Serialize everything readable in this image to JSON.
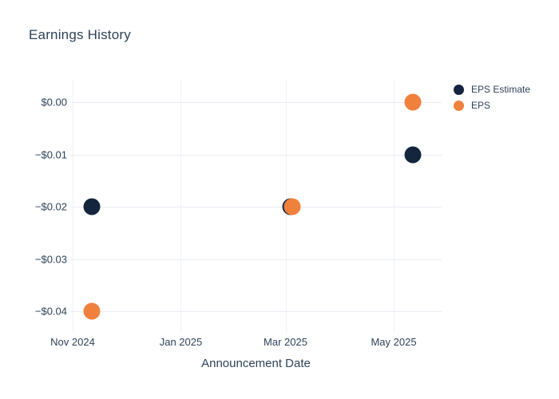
{
  "chart_data": {
    "type": "scatter",
    "title": "Earnings History",
    "xlabel": "Announcement Date",
    "ylabel": "",
    "grid": true,
    "background_color": "#ffffff",
    "gridline_color": "#e9edf5",
    "text_color": "#2e4258",
    "legend_position": "right-outside-top",
    "ylim": [
      -0.0445,
      0.0045
    ],
    "x_ticks": [
      {
        "label": "Nov 2024",
        "date": "2024-11-01"
      },
      {
        "label": "Jan 2025",
        "date": "2025-01-01"
      },
      {
        "label": "Mar 2025",
        "date": "2025-03-01"
      },
      {
        "label": "May 2025",
        "date": "2025-05-01"
      }
    ],
    "y_ticks": [
      {
        "label": "$0.00",
        "value": 0
      },
      {
        "label": "−$0.01",
        "value": -0.01
      },
      {
        "label": "−$0.02",
        "value": -0.02
      },
      {
        "label": "−$0.03",
        "value": -0.03
      },
      {
        "label": "−$0.04",
        "value": -0.04
      }
    ],
    "series": [
      {
        "name": "EPS Estimate",
        "color": "#14253e",
        "marker": "circle",
        "points": [
          {
            "date": "2024-11-12",
            "value": -0.02
          },
          {
            "date": "2025-03-04",
            "value": -0.02
          },
          {
            "date": "2025-05-12",
            "value": -0.01
          }
        ]
      },
      {
        "name": "EPS",
        "color": "#f0813c",
        "marker": "circle",
        "points": [
          {
            "date": "2024-11-12",
            "value": -0.04
          },
          {
            "date": "2025-03-05",
            "value": -0.02
          },
          {
            "date": "2025-05-12",
            "value": 0
          }
        ]
      }
    ]
  }
}
